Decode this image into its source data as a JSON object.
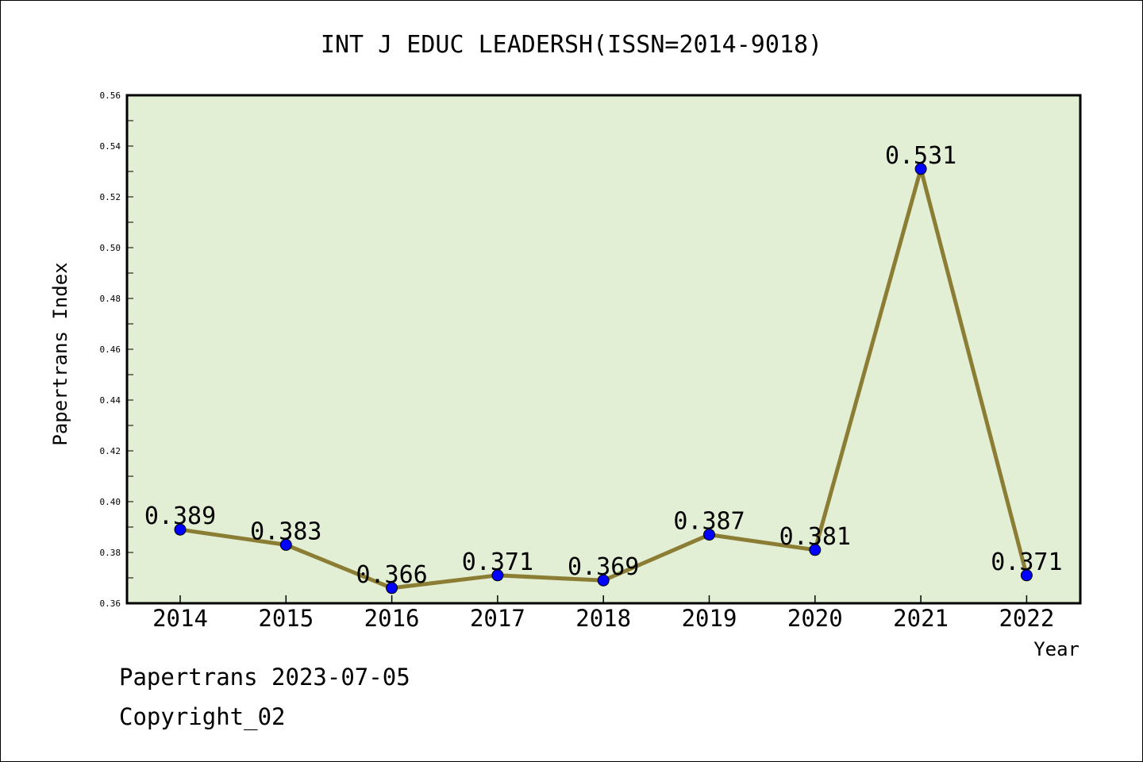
{
  "chart_data": {
    "type": "line",
    "title": "INT J EDUC LEADERSH(ISSN=2014-9018)",
    "xlabel": "Year",
    "ylabel": "Papertrans Index",
    "categories": [
      "2014",
      "2015",
      "2016",
      "2017",
      "2018",
      "2019",
      "2020",
      "2021",
      "2022"
    ],
    "series": [
      {
        "values": [
          0.389,
          0.383,
          0.366,
          0.371,
          0.369,
          0.387,
          0.381,
          0.531,
          0.371
        ],
        "labels": [
          "0.389",
          "0.383",
          "0.366",
          "0.371",
          "0.369",
          "0.387",
          "0.381",
          "0.531",
          "0.371"
        ]
      }
    ],
    "ylim": [
      0.36,
      0.56
    ],
    "yticks": [
      "0.36",
      "0.38",
      "0.40",
      "0.42",
      "0.44",
      "0.46",
      "0.48",
      "0.50",
      "0.52",
      "0.54",
      "0.56"
    ],
    "grid": false,
    "colors": {
      "plot_background": "#e2efd5",
      "line": "#8c7d34",
      "marker": "#0000ff"
    }
  },
  "footer": {
    "line1": "Papertrans 2023-07-05",
    "line2": "Copyright_02"
  }
}
